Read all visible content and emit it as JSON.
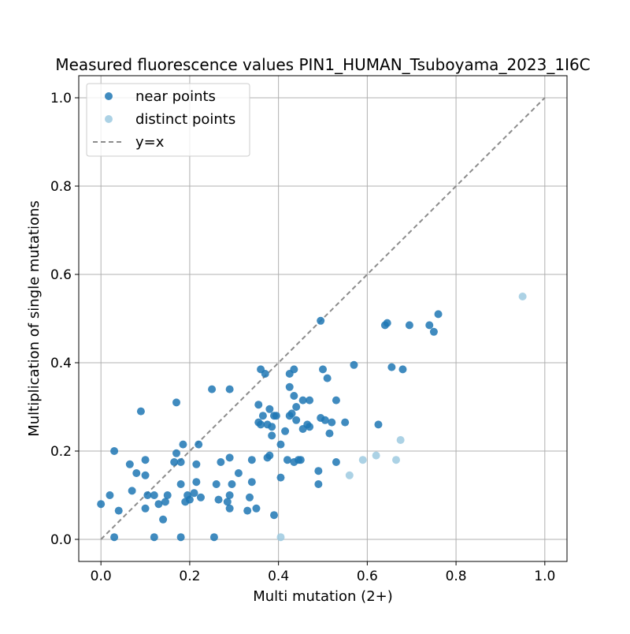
{
  "chart_data": {
    "type": "scatter",
    "title": "Measured fluorescence values PIN1_HUMAN_Tsuboyama_2023_1I6C",
    "xlabel": "Multi mutation (2+)",
    "ylabel": "Multiplication of single mutations",
    "xlim": [
      -0.05,
      1.05
    ],
    "ylim": [
      -0.05,
      1.05
    ],
    "xticks": [
      "0.0",
      "0.2",
      "0.4",
      "0.6",
      "0.8",
      "1.0"
    ],
    "yticks": [
      "0.0",
      "0.2",
      "0.4",
      "0.6",
      "0.8",
      "1.0"
    ],
    "grid": true,
    "legend_position": "top-left",
    "series": [
      {
        "name": "near points",
        "color": "#1f77b4",
        "points": [
          [
            0.0,
            0.08
          ],
          [
            0.03,
            0.2
          ],
          [
            0.02,
            0.1
          ],
          [
            0.03,
            0.005
          ],
          [
            0.04,
            0.065
          ],
          [
            0.065,
            0.17
          ],
          [
            0.07,
            0.11
          ],
          [
            0.08,
            0.15
          ],
          [
            0.09,
            0.29
          ],
          [
            0.1,
            0.145
          ],
          [
            0.1,
            0.18
          ],
          [
            0.1,
            0.07
          ],
          [
            0.105,
            0.1
          ],
          [
            0.12,
            0.1
          ],
          [
            0.12,
            0.005
          ],
          [
            0.13,
            0.08
          ],
          [
            0.14,
            0.045
          ],
          [
            0.145,
            0.085
          ],
          [
            0.15,
            0.1
          ],
          [
            0.165,
            0.175
          ],
          [
            0.17,
            0.195
          ],
          [
            0.17,
            0.31
          ],
          [
            0.18,
            0.005
          ],
          [
            0.18,
            0.175
          ],
          [
            0.18,
            0.125
          ],
          [
            0.185,
            0.215
          ],
          [
            0.19,
            0.085
          ],
          [
            0.195,
            0.1
          ],
          [
            0.2,
            0.09
          ],
          [
            0.21,
            0.105
          ],
          [
            0.215,
            0.13
          ],
          [
            0.215,
            0.17
          ],
          [
            0.22,
            0.215
          ],
          [
            0.225,
            0.095
          ],
          [
            0.25,
            0.34
          ],
          [
            0.255,
            0.005
          ],
          [
            0.26,
            0.125
          ],
          [
            0.265,
            0.09
          ],
          [
            0.27,
            0.175
          ],
          [
            0.285,
            0.085
          ],
          [
            0.29,
            0.07
          ],
          [
            0.29,
            0.185
          ],
          [
            0.29,
            0.1
          ],
          [
            0.29,
            0.34
          ],
          [
            0.295,
            0.125
          ],
          [
            0.31,
            0.15
          ],
          [
            0.33,
            0.065
          ],
          [
            0.335,
            0.095
          ],
          [
            0.34,
            0.13
          ],
          [
            0.34,
            0.18
          ],
          [
            0.35,
            0.07
          ],
          [
            0.355,
            0.305
          ],
          [
            0.355,
            0.265
          ],
          [
            0.36,
            0.385
          ],
          [
            0.36,
            0.26
          ],
          [
            0.365,
            0.28
          ],
          [
            0.37,
            0.375
          ],
          [
            0.375,
            0.26
          ],
          [
            0.375,
            0.185
          ],
          [
            0.38,
            0.19
          ],
          [
            0.38,
            0.295
          ],
          [
            0.385,
            0.255
          ],
          [
            0.385,
            0.235
          ],
          [
            0.39,
            0.28
          ],
          [
            0.39,
            0.055
          ],
          [
            0.395,
            0.28
          ],
          [
            0.405,
            0.215
          ],
          [
            0.405,
            0.14
          ],
          [
            0.415,
            0.245
          ],
          [
            0.42,
            0.18
          ],
          [
            0.425,
            0.345
          ],
          [
            0.425,
            0.375
          ],
          [
            0.425,
            0.28
          ],
          [
            0.43,
            0.285
          ],
          [
            0.435,
            0.385
          ],
          [
            0.435,
            0.325
          ],
          [
            0.435,
            0.175
          ],
          [
            0.44,
            0.27
          ],
          [
            0.44,
            0.3
          ],
          [
            0.445,
            0.18
          ],
          [
            0.45,
            0.18
          ],
          [
            0.455,
            0.315
          ],
          [
            0.455,
            0.25
          ],
          [
            0.465,
            0.26
          ],
          [
            0.47,
            0.255
          ],
          [
            0.47,
            0.315
          ],
          [
            0.49,
            0.155
          ],
          [
            0.49,
            0.125
          ],
          [
            0.495,
            0.495
          ],
          [
            0.495,
            0.275
          ],
          [
            0.5,
            0.385
          ],
          [
            0.505,
            0.27
          ],
          [
            0.51,
            0.365
          ],
          [
            0.515,
            0.24
          ],
          [
            0.52,
            0.265
          ],
          [
            0.53,
            0.175
          ],
          [
            0.53,
            0.315
          ],
          [
            0.55,
            0.265
          ],
          [
            0.57,
            0.395
          ],
          [
            0.625,
            0.26
          ],
          [
            0.64,
            0.485
          ],
          [
            0.645,
            0.49
          ],
          [
            0.655,
            0.39
          ],
          [
            0.68,
            0.385
          ],
          [
            0.695,
            0.485
          ],
          [
            0.74,
            0.485
          ],
          [
            0.75,
            0.47
          ],
          [
            0.76,
            0.51
          ]
        ]
      },
      {
        "name": "distinct points",
        "color": "#9ecae1",
        "points": [
          [
            0.405,
            0.005
          ],
          [
            0.56,
            0.145
          ],
          [
            0.59,
            0.18
          ],
          [
            0.62,
            0.19
          ],
          [
            0.665,
            0.18
          ],
          [
            0.675,
            0.225
          ],
          [
            0.95,
            0.55
          ]
        ]
      }
    ],
    "reference_line": {
      "name": "y=x",
      "color": "#8c8c8c",
      "from": [
        0.0,
        0.0
      ],
      "to": [
        1.0,
        1.0
      ]
    }
  }
}
